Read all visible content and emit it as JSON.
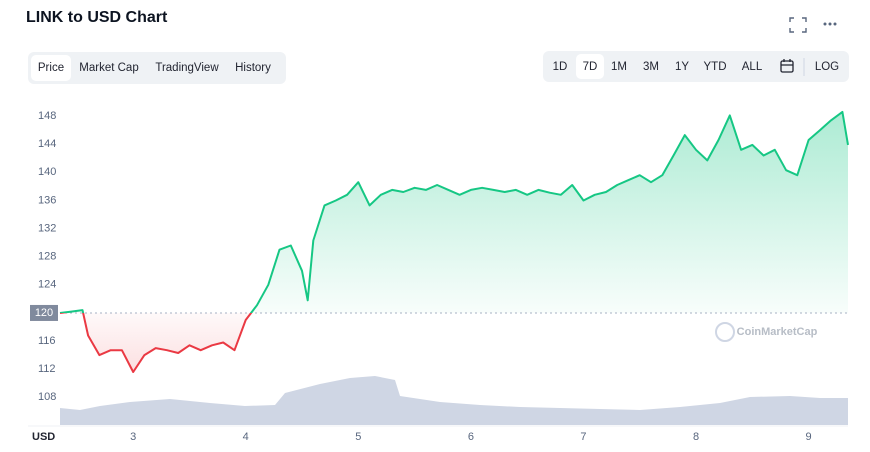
{
  "chart_data": {
    "type": "line",
    "title": "LINK to USD Chart",
    "x_label": "USD",
    "x": [
      2.35,
      2.45,
      2.55,
      2.6,
      2.7,
      2.8,
      2.9,
      3.0,
      3.1,
      3.2,
      3.3,
      3.4,
      3.5,
      3.6,
      3.7,
      3.8,
      3.9,
      4.0,
      4.1,
      4.2,
      4.3,
      4.4,
      4.5,
      4.55,
      4.6,
      4.7,
      4.8,
      4.9,
      5.0,
      5.1,
      5.2,
      5.3,
      5.4,
      5.5,
      5.6,
      5.7,
      5.8,
      5.9,
      6.0,
      6.1,
      6.2,
      6.3,
      6.4,
      6.5,
      6.6,
      6.7,
      6.8,
      6.9,
      7.0,
      7.1,
      7.2,
      7.3,
      7.4,
      7.5,
      7.6,
      7.7,
      7.8,
      7.9,
      8.0,
      8.1,
      8.2,
      8.3,
      8.4,
      8.5,
      8.6,
      8.7,
      8.8,
      8.9,
      9.0,
      9.1,
      9.2,
      9.3,
      9.35
    ],
    "values": [
      120,
      120.2,
      120.4,
      116.8,
      114,
      114.7,
      114.7,
      111.6,
      114,
      115,
      114.7,
      114.3,
      115.4,
      114.7,
      115.4,
      115.8,
      114.7,
      119,
      121.1,
      124,
      129,
      129.6,
      126,
      121.8,
      130.3,
      135.3,
      136,
      136.8,
      138.6,
      135.3,
      136.8,
      137.5,
      137.2,
      137.8,
      137.5,
      138.2,
      137.5,
      136.8,
      137.5,
      137.8,
      137.5,
      137.2,
      137.5,
      136.8,
      137.5,
      137.1,
      136.8,
      138.2,
      136,
      136.8,
      137.2,
      138.2,
      138.9,
      139.6,
      138.6,
      139.6,
      142.4,
      145.3,
      143.2,
      141.7,
      144.6,
      148.1,
      143.2,
      143.9,
      142.4,
      143.2,
      140.3,
      139.6,
      144.6,
      146,
      147.4,
      148.6,
      143.9
    ],
    "xlim": [
      2.35,
      9.35
    ],
    "xticks": [
      3,
      4,
      5,
      6,
      7,
      8,
      9
    ],
    "ylim": [
      102.5,
      151
    ],
    "yticks": [
      108,
      112,
      116,
      124,
      128,
      132,
      136,
      140,
      144,
      148
    ],
    "baseline": 120,
    "color_above": "#16c784",
    "color_below": "#ea3943",
    "watermark": "CoinMarketCap"
  },
  "tabs": [
    {
      "label": "Price",
      "active": true
    },
    {
      "label": "Market Cap",
      "active": false
    },
    {
      "label": "TradingView",
      "active": false
    },
    {
      "label": "History",
      "active": false
    }
  ],
  "ranges": [
    {
      "label": "1D",
      "active": false
    },
    {
      "label": "7D",
      "active": true
    },
    {
      "label": "1M",
      "active": false
    },
    {
      "label": "3M",
      "active": false
    },
    {
      "label": "1Y",
      "active": false
    },
    {
      "label": "YTD",
      "active": false
    },
    {
      "label": "ALL",
      "active": false
    }
  ],
  "scale_button": "LOG"
}
